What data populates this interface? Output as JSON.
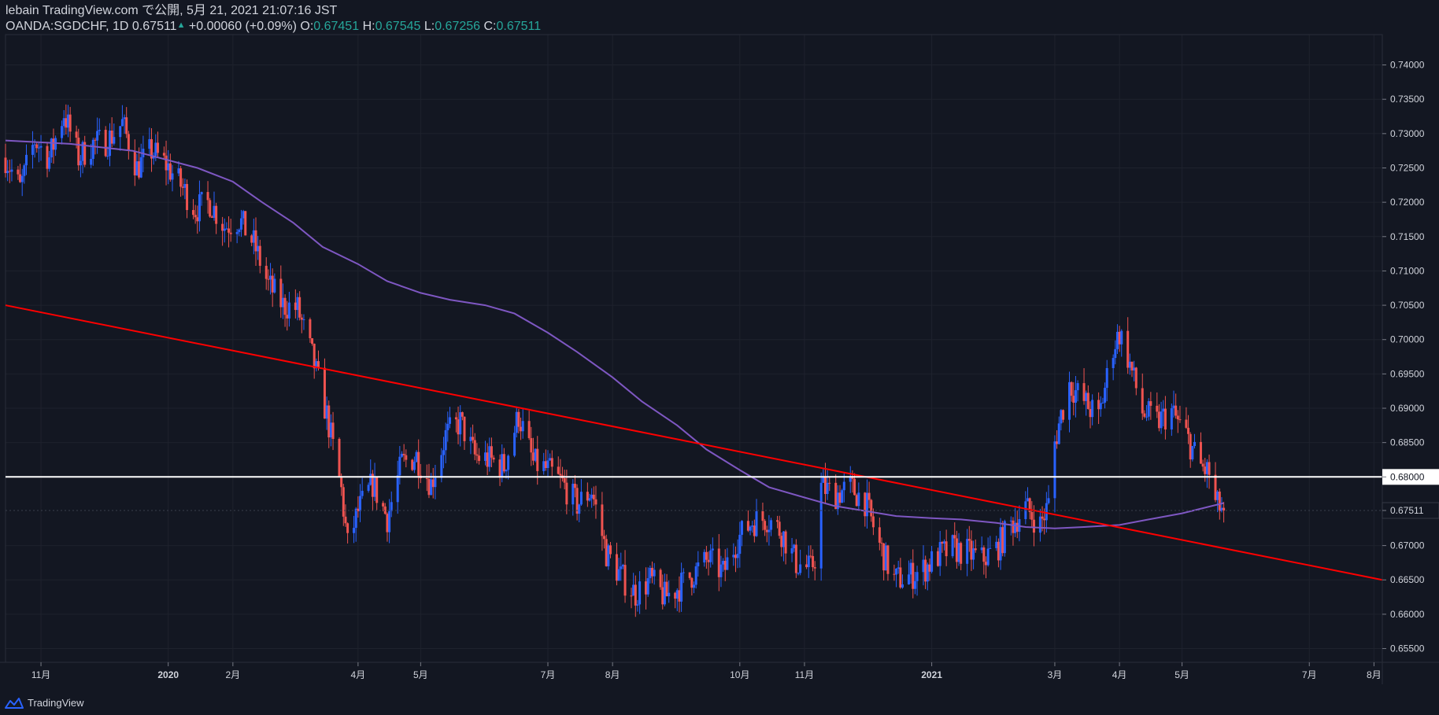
{
  "header": {
    "title_line": "lebain TradingView.com で公開, 5月 21, 2021 21:07:16 JST",
    "symbol": "OANDA:SGDCHF, 1D",
    "last": "0.67511",
    "change": "+0.00060 (+0.09%)",
    "o_label": "O:",
    "o_value": "0.67451",
    "h_label": "H:",
    "h_value": "0.67545",
    "l_label": "L:",
    "l_value": "0.67256",
    "c_label": "C:",
    "c_value": "0.67511"
  },
  "footer": {
    "brand": "TradingView",
    "logo_icon": "tradingview-logo-icon"
  },
  "colors": {
    "background": "#131722",
    "up": "#2962ff",
    "down": "#ef5350",
    "ma": "#7e57c2",
    "trendline": "#ff0000",
    "hline": "#ffffff",
    "grid": "#1e222d"
  },
  "chart_data": {
    "type": "candlestick",
    "symbol": "OANDA:SGDCHF",
    "interval": "1D",
    "ylim": [
      0.653,
      0.7435
    ],
    "y_ticks": [
      "0.74000",
      "0.73500",
      "0.73000",
      "0.72500",
      "0.72000",
      "0.71500",
      "0.71000",
      "0.70500",
      "0.70000",
      "0.69500",
      "0.69000",
      "0.68500",
      "0.68000",
      "0.67511",
      "0.67000",
      "0.66500",
      "0.66000",
      "0.65500"
    ],
    "x_ticks": [
      {
        "label": "11月",
        "date": "2019-11-01"
      },
      {
        "label": "2020",
        "date": "2020-01-01"
      },
      {
        "label": "2月",
        "date": "2020-02-01"
      },
      {
        "label": "4月",
        "date": "2020-04-01"
      },
      {
        "label": "5月",
        "date": "2020-05-01"
      },
      {
        "label": "7月",
        "date": "2020-07-01"
      },
      {
        "label": "8月",
        "date": "2020-08-01"
      },
      {
        "label": "10月",
        "date": "2020-10-01"
      },
      {
        "label": "11月",
        "date": "2020-11-01"
      },
      {
        "label": "2021",
        "date": "2021-01-01"
      },
      {
        "label": "3月",
        "date": "2021-03-01"
      },
      {
        "label": "4月",
        "date": "2021-04-01"
      },
      {
        "label": "5月",
        "date": "2021-05-01"
      },
      {
        "label": "7月",
        "date": "2021-07-01"
      },
      {
        "label": "8月",
        "date": "2021-08-01"
      }
    ],
    "x_range": [
      "2019-10-15",
      "2021-08-05"
    ],
    "last_price": 0.67511,
    "horizontal_line": 0.68,
    "trendline": [
      {
        "date": "2019-10-15",
        "price": 0.705
      },
      {
        "date": "2021-08-05",
        "price": 0.665
      }
    ],
    "close_path": [
      {
        "date": "2019-10-15",
        "price": 0.7265
      },
      {
        "date": "2019-10-22",
        "price": 0.722
      },
      {
        "date": "2019-10-29",
        "price": 0.729
      },
      {
        "date": "2019-11-05",
        "price": 0.7265
      },
      {
        "date": "2019-11-12",
        "price": 0.733
      },
      {
        "date": "2019-11-19",
        "price": 0.7265
      },
      {
        "date": "2019-11-26",
        "price": 0.7285
      },
      {
        "date": "2019-12-03",
        "price": 0.729
      },
      {
        "date": "2019-12-10",
        "price": 0.7315
      },
      {
        "date": "2019-12-17",
        "price": 0.725
      },
      {
        "date": "2019-12-24",
        "price": 0.7275
      },
      {
        "date": "2019-12-31",
        "price": 0.7255
      },
      {
        "date": "2020-01-07",
        "price": 0.7225
      },
      {
        "date": "2020-01-14",
        "price": 0.719
      },
      {
        "date": "2020-01-21",
        "price": 0.72
      },
      {
        "date": "2020-01-28",
        "price": 0.7165
      },
      {
        "date": "2020-02-04",
        "price": 0.7175
      },
      {
        "date": "2020-02-11",
        "price": 0.714
      },
      {
        "date": "2020-02-18",
        "price": 0.708
      },
      {
        "date": "2020-02-25",
        "price": 0.705
      },
      {
        "date": "2020-03-03",
        "price": 0.7045
      },
      {
        "date": "2020-03-10",
        "price": 0.6975
      },
      {
        "date": "2020-03-17",
        "price": 0.689
      },
      {
        "date": "2020-03-24",
        "price": 0.678
      },
      {
        "date": "2020-03-27",
        "price": 0.67
      },
      {
        "date": "2020-04-01",
        "price": 0.675
      },
      {
        "date": "2020-04-08",
        "price": 0.679
      },
      {
        "date": "2020-04-15",
        "price": 0.674
      },
      {
        "date": "2020-04-22",
        "price": 0.682
      },
      {
        "date": "2020-04-29",
        "price": 0.683
      },
      {
        "date": "2020-05-06",
        "price": 0.679
      },
      {
        "date": "2020-05-13",
        "price": 0.686
      },
      {
        "date": "2020-05-20",
        "price": 0.688
      },
      {
        "date": "2020-05-27",
        "price": 0.683
      },
      {
        "date": "2020-06-03",
        "price": 0.6825
      },
      {
        "date": "2020-06-10",
        "price": 0.6815
      },
      {
        "date": "2020-06-17",
        "price": 0.689
      },
      {
        "date": "2020-06-24",
        "price": 0.682
      },
      {
        "date": "2020-07-01",
        "price": 0.681
      },
      {
        "date": "2020-07-08",
        "price": 0.679
      },
      {
        "date": "2020-07-15",
        "price": 0.676
      },
      {
        "date": "2020-07-22",
        "price": 0.678
      },
      {
        "date": "2020-07-29",
        "price": 0.669
      },
      {
        "date": "2020-08-05",
        "price": 0.6655
      },
      {
        "date": "2020-08-12",
        "price": 0.663
      },
      {
        "date": "2020-08-19",
        "price": 0.665
      },
      {
        "date": "2020-08-26",
        "price": 0.6625
      },
      {
        "date": "2020-09-02",
        "price": 0.664
      },
      {
        "date": "2020-09-09",
        "price": 0.666
      },
      {
        "date": "2020-09-16",
        "price": 0.668
      },
      {
        "date": "2020-09-23",
        "price": 0.666
      },
      {
        "date": "2020-09-30",
        "price": 0.671
      },
      {
        "date": "2020-10-07",
        "price": 0.6735
      },
      {
        "date": "2020-10-14",
        "price": 0.674
      },
      {
        "date": "2020-10-21",
        "price": 0.672
      },
      {
        "date": "2020-10-28",
        "price": 0.6675
      },
      {
        "date": "2020-11-04",
        "price": 0.6665
      },
      {
        "date": "2020-11-08",
        "price": 0.67
      },
      {
        "date": "2020-11-09",
        "price": 0.6785
      },
      {
        "date": "2020-11-16",
        "price": 0.6775
      },
      {
        "date": "2020-11-23",
        "price": 0.6785
      },
      {
        "date": "2020-11-30",
        "price": 0.6765
      },
      {
        "date": "2020-12-07",
        "price": 0.67
      },
      {
        "date": "2020-12-14",
        "price": 0.665
      },
      {
        "date": "2020-12-21",
        "price": 0.6655
      },
      {
        "date": "2020-12-28",
        "price": 0.6665
      },
      {
        "date": "2021-01-04",
        "price": 0.6685
      },
      {
        "date": "2021-01-11",
        "price": 0.6695
      },
      {
        "date": "2021-01-18",
        "price": 0.669
      },
      {
        "date": "2021-01-25",
        "price": 0.668
      },
      {
        "date": "2021-02-01",
        "price": 0.6695
      },
      {
        "date": "2021-02-08",
        "price": 0.673
      },
      {
        "date": "2021-02-15",
        "price": 0.6755
      },
      {
        "date": "2021-02-22",
        "price": 0.673
      },
      {
        "date": "2021-02-26",
        "price": 0.676
      },
      {
        "date": "2021-03-01",
        "price": 0.685
      },
      {
        "date": "2021-03-04",
        "price": 0.689
      },
      {
        "date": "2021-03-08",
        "price": 0.6935
      },
      {
        "date": "2021-03-15",
        "price": 0.691
      },
      {
        "date": "2021-03-22",
        "price": 0.6885
      },
      {
        "date": "2021-03-29",
        "price": 0.699
      },
      {
        "date": "2021-04-01",
        "price": 0.701
      },
      {
        "date": "2021-04-05",
        "price": 0.6975
      },
      {
        "date": "2021-04-12",
        "price": 0.6895
      },
      {
        "date": "2021-04-19",
        "price": 0.688
      },
      {
        "date": "2021-04-26",
        "price": 0.6895
      },
      {
        "date": "2021-05-03",
        "price": 0.686
      },
      {
        "date": "2021-05-10",
        "price": 0.6815
      },
      {
        "date": "2021-05-14",
        "price": 0.6805
      },
      {
        "date": "2021-05-17",
        "price": 0.676
      },
      {
        "date": "2021-05-21",
        "price": 0.6751
      }
    ],
    "ma_line": [
      {
        "date": "2019-10-15",
        "price": 0.729
      },
      {
        "date": "2019-11-15",
        "price": 0.7285
      },
      {
        "date": "2019-12-15",
        "price": 0.7275
      },
      {
        "date": "2020-01-15",
        "price": 0.725
      },
      {
        "date": "2020-02-01",
        "price": 0.723
      },
      {
        "date": "2020-02-15",
        "price": 0.72
      },
      {
        "date": "2020-03-01",
        "price": 0.717
      },
      {
        "date": "2020-03-15",
        "price": 0.7135
      },
      {
        "date": "2020-04-01",
        "price": 0.711
      },
      {
        "date": "2020-04-15",
        "price": 0.7085
      },
      {
        "date": "2020-05-01",
        "price": 0.7068
      },
      {
        "date": "2020-05-15",
        "price": 0.7058
      },
      {
        "date": "2020-06-01",
        "price": 0.705
      },
      {
        "date": "2020-06-15",
        "price": 0.7038
      },
      {
        "date": "2020-07-01",
        "price": 0.701
      },
      {
        "date": "2020-07-15",
        "price": 0.6982
      },
      {
        "date": "2020-08-01",
        "price": 0.6945
      },
      {
        "date": "2020-08-15",
        "price": 0.691
      },
      {
        "date": "2020-09-01",
        "price": 0.6875
      },
      {
        "date": "2020-09-15",
        "price": 0.684
      },
      {
        "date": "2020-10-01",
        "price": 0.681
      },
      {
        "date": "2020-10-15",
        "price": 0.6785
      },
      {
        "date": "2020-11-01",
        "price": 0.677
      },
      {
        "date": "2020-11-15",
        "price": 0.6758
      },
      {
        "date": "2020-12-01",
        "price": 0.675
      },
      {
        "date": "2020-12-15",
        "price": 0.6743
      },
      {
        "date": "2021-01-01",
        "price": 0.674
      },
      {
        "date": "2021-01-15",
        "price": 0.6738
      },
      {
        "date": "2021-02-01",
        "price": 0.6733
      },
      {
        "date": "2021-02-15",
        "price": 0.6727
      },
      {
        "date": "2021-03-01",
        "price": 0.6725
      },
      {
        "date": "2021-03-15",
        "price": 0.6727
      },
      {
        "date": "2021-04-01",
        "price": 0.673
      },
      {
        "date": "2021-04-15",
        "price": 0.6738
      },
      {
        "date": "2021-05-01",
        "price": 0.6747
      },
      {
        "date": "2021-05-21",
        "price": 0.6762
      }
    ]
  }
}
